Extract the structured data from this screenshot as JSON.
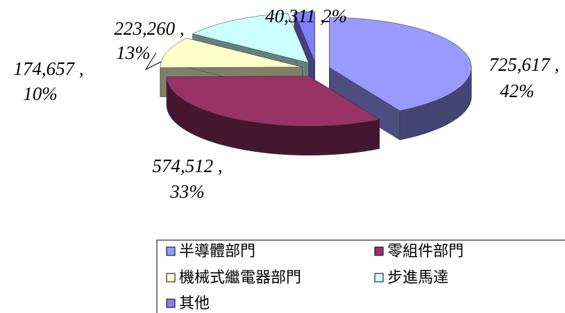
{
  "chart_data": {
    "type": "pie",
    "categories": [
      "半導體部門",
      "零組件部門",
      "機械式繼電器部門",
      "步進馬達",
      "其他"
    ],
    "values": [
      725617,
      574512,
      174657,
      223260,
      40311
    ],
    "value_labels": [
      "725,617 ,",
      "574,512 ,",
      "174,657 ,",
      "223,260 ,",
      "40,311 ,"
    ],
    "percents": [
      42,
      33,
      10,
      13,
      2
    ],
    "percent_labels": [
      "42%",
      "33%",
      "10%",
      "13%",
      "2%"
    ],
    "colors": [
      "#9999ff",
      "#993366",
      "#ffffcc",
      "#ccffff",
      "#8080ff"
    ],
    "legend": "bottom"
  }
}
